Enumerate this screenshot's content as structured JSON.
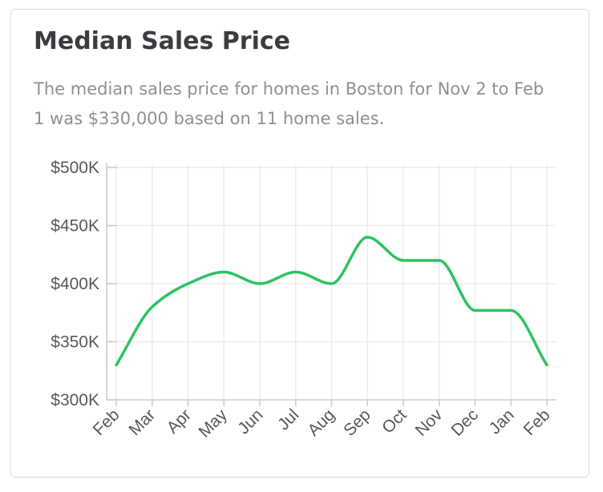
{
  "card": {
    "title": "Median Sales Price",
    "subtitle": "The median sales price for homes in Boston for Nov 2 to Feb 1 was $330,000 based on 11 home sales."
  },
  "chart_data": {
    "type": "line",
    "title": "",
    "xlabel": "",
    "ylabel": "",
    "categories": [
      "Feb",
      "Mar",
      "Apr",
      "May",
      "Jun",
      "Jul",
      "Aug",
      "Sep",
      "Oct",
      "Nov",
      "Dec",
      "Jan",
      "Feb"
    ],
    "series": [
      {
        "values": [
          330000,
          380000,
          400000,
          410000,
          400000,
          410000,
          400000,
          440000,
          420000,
          420000,
          377000,
          377000,
          330000
        ],
        "color": "#2ec262"
      }
    ],
    "ylim": [
      300000,
      500000
    ],
    "y_ticks": [
      300000,
      350000,
      400000,
      450000,
      500000
    ],
    "y_tick_labels": [
      "$300K",
      "$350K",
      "$400K",
      "$450K",
      "$500K"
    ],
    "grid": true,
    "curve": "smooth",
    "grid_color": "#ececec",
    "axis_color": "#cccccc"
  }
}
